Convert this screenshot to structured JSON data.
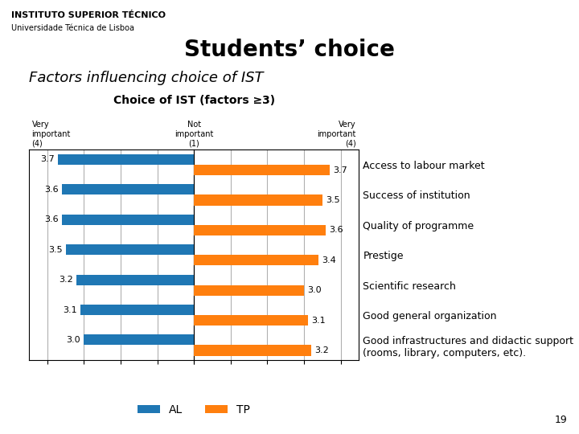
{
  "chart_data": {
    "type": "bar",
    "orientation": "horizontal",
    "title": "Students’ choice",
    "subtitle": "Factors influencing choice of IST",
    "annotations": {
      "header": [
        "INSTITUTO SUPERIOR TÉCNICO",
        "Universidade Técnica de Lisboa"
      ],
      "chart_title": "Choice of IST (factors ≥3)",
      "scale_labels": [
        "Very\nimportant\n(4)",
        "Not\nimportant\n(1)",
        "Very\nimportant\n(4)"
      ],
      "page": "19"
    },
    "categories": [
      "Access to labour market",
      "Success of institution",
      "Quality of programme",
      "Prestige",
      "Scientific research",
      "Good general organization",
      "Good infrastructures and didactic support\n(rooms, library, computers, etc)."
    ],
    "series": [
      {
        "name": "AL",
        "values": [
          3.7,
          3.6,
          3.6,
          3.5,
          3.2,
          3.1,
          3.0
        ]
      },
      {
        "name": "TP",
        "values": [
          3.7,
          3.5,
          3.6,
          3.4,
          3.0,
          3.1,
          3.2
        ]
      }
    ],
    "xlim": [
      0,
      4.5
    ],
    "xticks": [
      0,
      1,
      2,
      3,
      4
    ],
    "grid": true,
    "tick_labels": "y",
    "data_labels": true,
    "legend": "lower center"
  }
}
